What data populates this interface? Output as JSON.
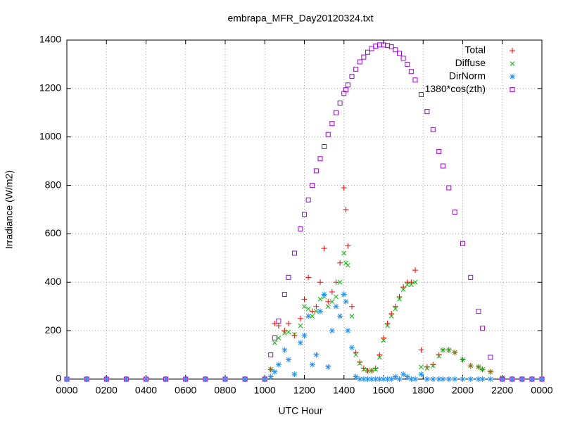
{
  "chart_data": {
    "type": "scatter",
    "title": "embrapa_MFR_Day20120324.txt",
    "xlabel": "UTC Hour",
    "ylabel": "Irradiance (W/m2)",
    "xlim": [
      0,
      24
    ],
    "ylim": [
      0,
      1400
    ],
    "xticks": [
      {
        "value": 0,
        "label": "0000"
      },
      {
        "value": 2,
        "label": "0200"
      },
      {
        "value": 4,
        "label": "0400"
      },
      {
        "value": 6,
        "label": "0600"
      },
      {
        "value": 8,
        "label": "0800"
      },
      {
        "value": 10,
        "label": "1000"
      },
      {
        "value": 12,
        "label": "1200"
      },
      {
        "value": 14,
        "label": "1400"
      },
      {
        "value": 16,
        "label": "1600"
      },
      {
        "value": 18,
        "label": "1800"
      },
      {
        "value": 20,
        "label": "2000"
      },
      {
        "value": 22,
        "label": "2200"
      },
      {
        "value": 24,
        "label": "0000"
      }
    ],
    "yticks": [
      0,
      200,
      400,
      600,
      800,
      1000,
      1200,
      1400
    ],
    "grid": true,
    "legend": "upper right",
    "x": [
      0,
      1,
      2,
      3,
      4,
      5,
      6,
      7,
      8,
      9,
      10.0,
      10.3,
      10.5,
      10.7,
      11.0,
      11.2,
      11.5,
      11.8,
      12.0,
      12.2,
      12.4,
      12.6,
      12.8,
      13.0,
      13.2,
      13.4,
      13.6,
      13.8,
      14.0,
      14.1,
      14.2,
      14.4,
      14.6,
      14.8,
      15.0,
      15.2,
      15.4,
      15.6,
      15.8,
      16.0,
      16.2,
      16.4,
      16.6,
      16.8,
      17.0,
      17.2,
      17.4,
      17.6,
      17.9,
      18.2,
      18.5,
      18.8,
      19.0,
      19.3,
      19.6,
      20.0,
      20.4,
      20.8,
      21.0,
      21.4,
      22.0,
      22.5,
      23,
      23.5,
      24
    ],
    "series": [
      {
        "name": "Total",
        "color": "#ff0000",
        "marker": "plus",
        "values": [
          0,
          0,
          0,
          0,
          0,
          0,
          0,
          0,
          0,
          0,
          0,
          40,
          230,
          220,
          200,
          230,
          180,
          250,
          330,
          420,
          280,
          300,
          400,
          540,
          320,
          360,
          400,
          480,
          790,
          700,
          550,
          300,
          110,
          70,
          45,
          35,
          35,
          45,
          100,
          170,
          230,
          270,
          300,
          340,
          380,
          400,
          400,
          450,
          120,
          50,
          60,
          100,
          120,
          120,
          110,
          80,
          55,
          50,
          40,
          30,
          5,
          0,
          0,
          0,
          0
        ]
      },
      {
        "name": "Diffuse",
        "color": "#00c000",
        "marker": "cross",
        "values": [
          0,
          0,
          0,
          0,
          0,
          0,
          0,
          0,
          0,
          0,
          0,
          40,
          150,
          170,
          190,
          195,
          185,
          220,
          300,
          290,
          260,
          280,
          330,
          340,
          300,
          320,
          340,
          400,
          520,
          480,
          470,
          260,
          100,
          65,
          40,
          35,
          35,
          40,
          90,
          160,
          220,
          260,
          290,
          330,
          370,
          390,
          390,
          400,
          50,
          45,
          55,
          95,
          120,
          120,
          110,
          80,
          55,
          50,
          40,
          30,
          5,
          0,
          0,
          0,
          0
        ]
      },
      {
        "name": "DirNorm",
        "color": "#1e90ff",
        "marker": "star",
        "values": [
          0,
          0,
          0,
          0,
          0,
          0,
          0,
          0,
          0,
          0,
          0,
          10,
          30,
          60,
          120,
          80,
          20,
          150,
          180,
          260,
          60,
          100,
          280,
          350,
          50,
          200,
          300,
          260,
          350,
          320,
          200,
          130,
          10,
          0,
          0,
          0,
          0,
          0,
          0,
          0,
          0,
          0,
          10,
          0,
          20,
          10,
          0,
          0,
          20,
          0,
          0,
          0,
          0,
          0,
          0,
          0,
          0,
          0,
          0,
          0,
          0,
          0,
          0,
          0,
          0
        ]
      },
      {
        "name": "1380*cos(zth)",
        "color": "#a000e0",
        "marker": "square",
        "values": [
          0,
          0,
          0,
          0,
          0,
          0,
          0,
          0,
          0,
          0,
          0,
          100,
          170,
          240,
          350,
          420,
          520,
          620,
          680,
          740,
          800,
          860,
          910,
          960,
          1010,
          1055,
          1100,
          1140,
          1180,
          1195,
          1215,
          1250,
          1280,
          1310,
          1330,
          1350,
          1365,
          1375,
          1380,
          1380,
          1378,
          1372,
          1360,
          1345,
          1325,
          1300,
          1270,
          1235,
          1175,
          1105,
          1030,
          940,
          880,
          790,
          690,
          560,
          420,
          280,
          210,
          90,
          0,
          0,
          0,
          0,
          0
        ]
      }
    ]
  }
}
